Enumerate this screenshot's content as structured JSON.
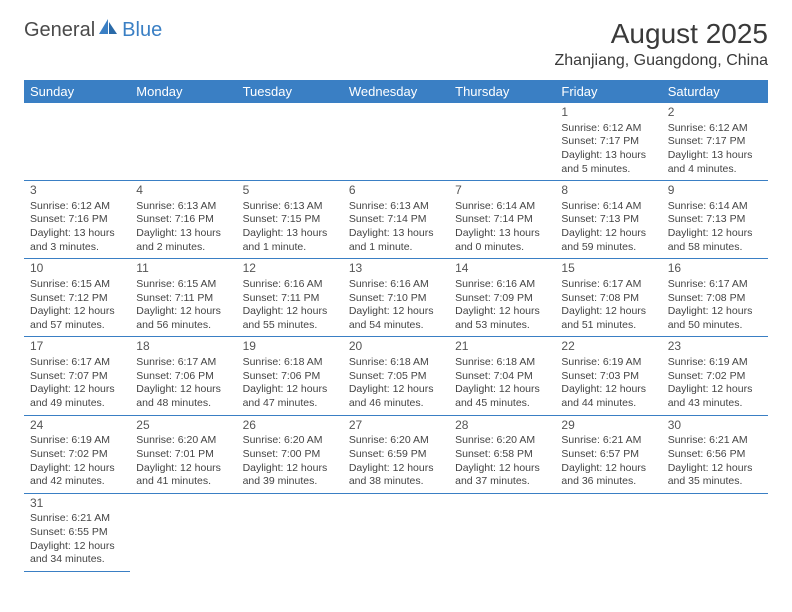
{
  "logo": {
    "text1": "General",
    "text2": "Blue"
  },
  "title": "August 2025",
  "location": "Zhanjiang, Guangdong, China",
  "colors": {
    "header_bg": "#3a7fc4",
    "header_fg": "#ffffff",
    "border": "#3a7fc4",
    "text": "#444444"
  },
  "day_headers": [
    "Sunday",
    "Monday",
    "Tuesday",
    "Wednesday",
    "Thursday",
    "Friday",
    "Saturday"
  ],
  "first_weekday_index": 5,
  "days": [
    {
      "n": 1,
      "sunrise": "6:12 AM",
      "sunset": "7:17 PM",
      "day_h": 13,
      "day_m": 5
    },
    {
      "n": 2,
      "sunrise": "6:12 AM",
      "sunset": "7:17 PM",
      "day_h": 13,
      "day_m": 4
    },
    {
      "n": 3,
      "sunrise": "6:12 AM",
      "sunset": "7:16 PM",
      "day_h": 13,
      "day_m": 3
    },
    {
      "n": 4,
      "sunrise": "6:13 AM",
      "sunset": "7:16 PM",
      "day_h": 13,
      "day_m": 2
    },
    {
      "n": 5,
      "sunrise": "6:13 AM",
      "sunset": "7:15 PM",
      "day_h": 13,
      "day_m": 1
    },
    {
      "n": 6,
      "sunrise": "6:13 AM",
      "sunset": "7:14 PM",
      "day_h": 13,
      "day_m": 1
    },
    {
      "n": 7,
      "sunrise": "6:14 AM",
      "sunset": "7:14 PM",
      "day_h": 13,
      "day_m": 0
    },
    {
      "n": 8,
      "sunrise": "6:14 AM",
      "sunset": "7:13 PM",
      "day_h": 12,
      "day_m": 59
    },
    {
      "n": 9,
      "sunrise": "6:14 AM",
      "sunset": "7:13 PM",
      "day_h": 12,
      "day_m": 58
    },
    {
      "n": 10,
      "sunrise": "6:15 AM",
      "sunset": "7:12 PM",
      "day_h": 12,
      "day_m": 57
    },
    {
      "n": 11,
      "sunrise": "6:15 AM",
      "sunset": "7:11 PM",
      "day_h": 12,
      "day_m": 56
    },
    {
      "n": 12,
      "sunrise": "6:16 AM",
      "sunset": "7:11 PM",
      "day_h": 12,
      "day_m": 55
    },
    {
      "n": 13,
      "sunrise": "6:16 AM",
      "sunset": "7:10 PM",
      "day_h": 12,
      "day_m": 54
    },
    {
      "n": 14,
      "sunrise": "6:16 AM",
      "sunset": "7:09 PM",
      "day_h": 12,
      "day_m": 53
    },
    {
      "n": 15,
      "sunrise": "6:17 AM",
      "sunset": "7:08 PM",
      "day_h": 12,
      "day_m": 51
    },
    {
      "n": 16,
      "sunrise": "6:17 AM",
      "sunset": "7:08 PM",
      "day_h": 12,
      "day_m": 50
    },
    {
      "n": 17,
      "sunrise": "6:17 AM",
      "sunset": "7:07 PM",
      "day_h": 12,
      "day_m": 49
    },
    {
      "n": 18,
      "sunrise": "6:17 AM",
      "sunset": "7:06 PM",
      "day_h": 12,
      "day_m": 48
    },
    {
      "n": 19,
      "sunrise": "6:18 AM",
      "sunset": "7:06 PM",
      "day_h": 12,
      "day_m": 47
    },
    {
      "n": 20,
      "sunrise": "6:18 AM",
      "sunset": "7:05 PM",
      "day_h": 12,
      "day_m": 46
    },
    {
      "n": 21,
      "sunrise": "6:18 AM",
      "sunset": "7:04 PM",
      "day_h": 12,
      "day_m": 45
    },
    {
      "n": 22,
      "sunrise": "6:19 AM",
      "sunset": "7:03 PM",
      "day_h": 12,
      "day_m": 44
    },
    {
      "n": 23,
      "sunrise": "6:19 AM",
      "sunset": "7:02 PM",
      "day_h": 12,
      "day_m": 43
    },
    {
      "n": 24,
      "sunrise": "6:19 AM",
      "sunset": "7:02 PM",
      "day_h": 12,
      "day_m": 42
    },
    {
      "n": 25,
      "sunrise": "6:20 AM",
      "sunset": "7:01 PM",
      "day_h": 12,
      "day_m": 41
    },
    {
      "n": 26,
      "sunrise": "6:20 AM",
      "sunset": "7:00 PM",
      "day_h": 12,
      "day_m": 39
    },
    {
      "n": 27,
      "sunrise": "6:20 AM",
      "sunset": "6:59 PM",
      "day_h": 12,
      "day_m": 38
    },
    {
      "n": 28,
      "sunrise": "6:20 AM",
      "sunset": "6:58 PM",
      "day_h": 12,
      "day_m": 37
    },
    {
      "n": 29,
      "sunrise": "6:21 AM",
      "sunset": "6:57 PM",
      "day_h": 12,
      "day_m": 36
    },
    {
      "n": 30,
      "sunrise": "6:21 AM",
      "sunset": "6:56 PM",
      "day_h": 12,
      "day_m": 35
    },
    {
      "n": 31,
      "sunrise": "6:21 AM",
      "sunset": "6:55 PM",
      "day_h": 12,
      "day_m": 34
    }
  ],
  "labels": {
    "sunrise_prefix": "Sunrise: ",
    "sunset_prefix": "Sunset: ",
    "daylight_prefix": "Daylight: ",
    "hours_word": " hours",
    "and_word": "and ",
    "minute_singular": " minute.",
    "minute_plural": " minutes."
  }
}
